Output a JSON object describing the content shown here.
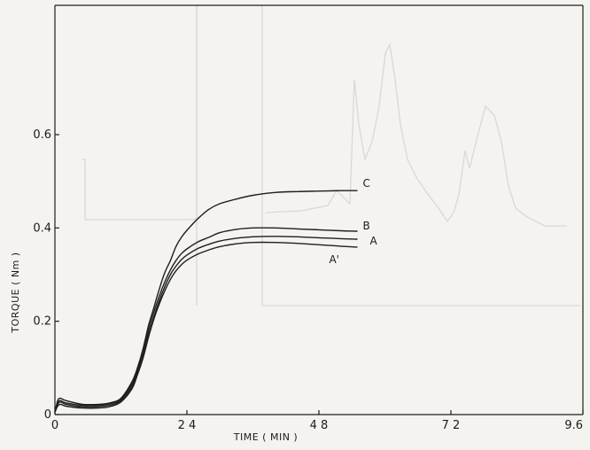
{
  "chart_data": {
    "type": "line",
    "title": "",
    "xlabel": "TIME ( MIN )",
    "ylabel": "TORQUE ( Nm )",
    "xlim": [
      0,
      9.6
    ],
    "ylim": [
      0,
      0.8
    ],
    "x_ticks": [
      0,
      2.4,
      4.8,
      7.2,
      9.6
    ],
    "x_tick_labels": [
      "0",
      "2 4",
      "4 8",
      "7 2",
      "9.6"
    ],
    "y_ticks": [
      0,
      0.2,
      0.4,
      0.6
    ],
    "y_tick_labels": [
      "0",
      "0.2",
      "0.4",
      "0.6"
    ],
    "grid": false,
    "legend": "none (curves labeled at right end)",
    "series": [
      {
        "name": "C",
        "x": [
          0,
          0.05,
          0.1,
          0.2,
          0.5,
          0.8,
          1.0,
          1.2,
          1.4,
          1.5,
          1.6,
          1.7,
          1.8,
          1.9,
          2.0,
          2.1,
          2.2,
          2.3,
          2.4,
          2.6,
          2.8,
          3.0,
          3.3,
          3.6,
          4.0,
          4.4,
          4.8,
          5.2,
          5.5
        ],
        "y": [
          0.005,
          0.03,
          0.035,
          0.03,
          0.022,
          0.022,
          0.025,
          0.035,
          0.07,
          0.1,
          0.14,
          0.19,
          0.23,
          0.27,
          0.305,
          0.33,
          0.36,
          0.38,
          0.395,
          0.42,
          0.44,
          0.452,
          0.462,
          0.47,
          0.476,
          0.478,
          0.479,
          0.48,
          0.48
        ]
      },
      {
        "name": "B",
        "x": [
          0,
          0.05,
          0.1,
          0.2,
          0.5,
          0.8,
          1.0,
          1.2,
          1.4,
          1.5,
          1.6,
          1.7,
          1.8,
          1.9,
          2.0,
          2.1,
          2.2,
          2.3,
          2.4,
          2.6,
          2.8,
          3.0,
          3.3,
          3.6,
          4.0,
          4.4,
          4.8,
          5.2,
          5.5
        ],
        "y": [
          0.005,
          0.025,
          0.03,
          0.025,
          0.02,
          0.02,
          0.023,
          0.033,
          0.065,
          0.095,
          0.13,
          0.18,
          0.22,
          0.255,
          0.285,
          0.31,
          0.33,
          0.345,
          0.355,
          0.37,
          0.38,
          0.39,
          0.397,
          0.4,
          0.4,
          0.398,
          0.396,
          0.394,
          0.393
        ]
      },
      {
        "name": "A",
        "x": [
          0,
          0.05,
          0.1,
          0.2,
          0.5,
          0.8,
          1.0,
          1.2,
          1.4,
          1.5,
          1.6,
          1.7,
          1.8,
          1.9,
          2.0,
          2.1,
          2.2,
          2.3,
          2.4,
          2.6,
          2.8,
          3.0,
          3.3,
          3.6,
          4.0,
          4.4,
          4.8,
          5.2,
          5.5
        ],
        "y": [
          0.005,
          0.022,
          0.027,
          0.022,
          0.017,
          0.017,
          0.02,
          0.03,
          0.06,
          0.09,
          0.125,
          0.17,
          0.21,
          0.245,
          0.275,
          0.3,
          0.318,
          0.332,
          0.342,
          0.356,
          0.365,
          0.372,
          0.378,
          0.381,
          0.382,
          0.381,
          0.379,
          0.377,
          0.376
        ]
      },
      {
        "name": "A'",
        "x": [
          0,
          0.05,
          0.1,
          0.2,
          0.5,
          0.8,
          1.0,
          1.2,
          1.4,
          1.5,
          1.6,
          1.7,
          1.8,
          1.9,
          2.0,
          2.1,
          2.2,
          2.3,
          2.4,
          2.6,
          2.8,
          3.0,
          3.3,
          3.6,
          4.0,
          4.4,
          4.8,
          5.2,
          5.5
        ],
        "y": [
          0.005,
          0.018,
          0.022,
          0.018,
          0.014,
          0.014,
          0.017,
          0.027,
          0.055,
          0.085,
          0.12,
          0.165,
          0.205,
          0.238,
          0.266,
          0.29,
          0.308,
          0.321,
          0.331,
          0.344,
          0.353,
          0.36,
          0.366,
          0.369,
          0.369,
          0.367,
          0.364,
          0.361,
          0.359
        ]
      }
    ]
  }
}
